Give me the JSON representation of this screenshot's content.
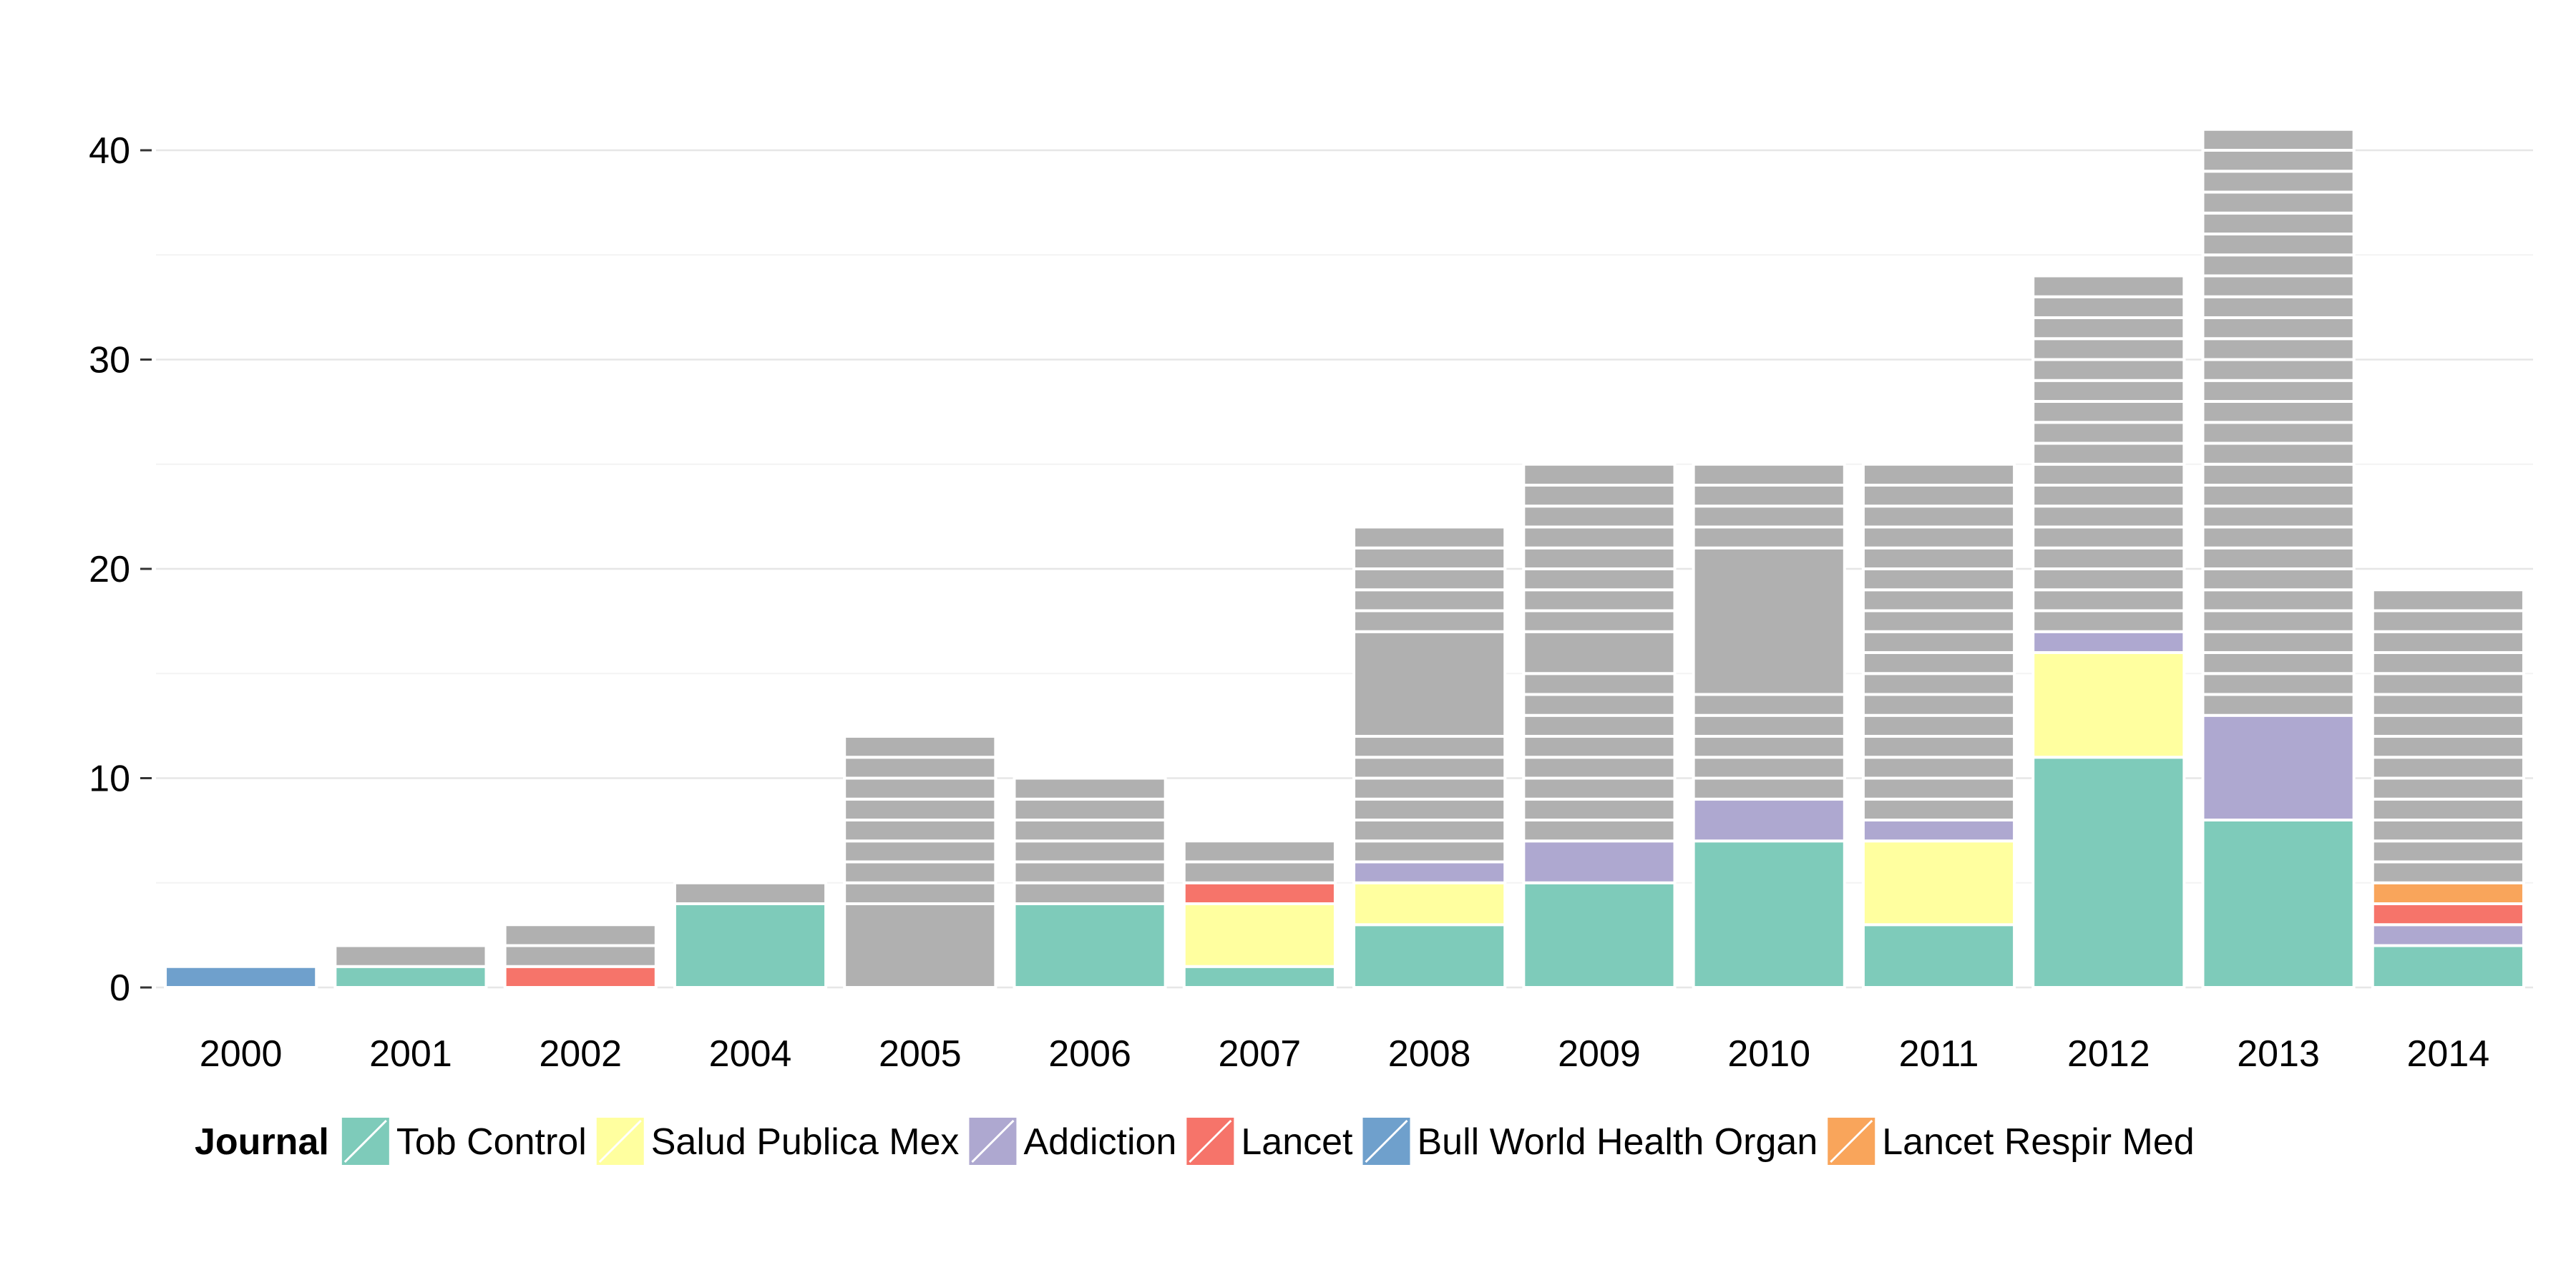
{
  "chart_data": {
    "type": "bar",
    "stacked": true,
    "categories": [
      "2000",
      "2001",
      "2002",
      "2004",
      "2005",
      "2006",
      "2007",
      "2008",
      "2009",
      "2010",
      "2011",
      "2012",
      "2013",
      "2014"
    ],
    "ylim": [
      0,
      43
    ],
    "y_ticks": [
      0,
      10,
      20,
      30,
      40
    ],
    "grid": true,
    "legend": {
      "title": "Journal",
      "position": "bottom",
      "entries": [
        "Tob Control",
        "Salud Publica Mex",
        "Addiction",
        "Lancet",
        "Bull World Health Organ",
        "Lancet Respir Med"
      ]
    },
    "series": [
      {
        "name": "Bull World Health Organ",
        "color": "#6fa0cc",
        "values": [
          1,
          0,
          0,
          0,
          0,
          0,
          0,
          0,
          0,
          0,
          0,
          0,
          0,
          0
        ]
      },
      {
        "name": "Tob Control",
        "color": "#7ecbba",
        "values": [
          0,
          1,
          0,
          4,
          0,
          4,
          1,
          3,
          5,
          7,
          3,
          11,
          8,
          2
        ]
      },
      {
        "name": "Salud Publica Mex",
        "color": "#ffff9f",
        "values": [
          0,
          0,
          0,
          0,
          0,
          0,
          3,
          2,
          0,
          0,
          4,
          5,
          0,
          0
        ]
      },
      {
        "name": "Addiction",
        "color": "#aea8d0",
        "values": [
          0,
          0,
          0,
          0,
          0,
          0,
          0,
          1,
          2,
          2,
          1,
          1,
          5,
          1
        ]
      },
      {
        "name": "Lancet",
        "color": "#f6746a",
        "values": [
          0,
          0,
          1,
          0,
          0,
          0,
          1,
          0,
          0,
          0,
          0,
          0,
          0,
          1
        ]
      },
      {
        "name": "Lancet Respir Med",
        "color": "#f9a55b",
        "values": [
          0,
          0,
          0,
          0,
          0,
          0,
          0,
          0,
          0,
          0,
          0,
          0,
          0,
          1
        ]
      }
    ],
    "other": {
      "color": "#b0b0b0",
      "segments": [
        [],
        [
          1
        ],
        [
          1,
          1
        ],
        [
          1
        ],
        [
          4,
          1,
          1,
          1,
          1,
          1,
          1,
          1,
          1
        ],
        [
          1,
          1,
          1,
          1,
          1,
          1
        ],
        [
          1,
          1
        ],
        [
          1,
          1,
          1,
          1,
          1,
          1,
          5,
          1,
          1,
          1,
          1,
          1
        ],
        [
          1,
          1,
          1,
          1,
          1,
          1,
          1,
          1,
          2,
          1,
          1,
          1,
          1,
          1,
          1,
          1,
          1
        ],
        [
          1,
          1,
          1,
          1,
          1,
          7,
          1,
          1,
          1,
          1
        ],
        [
          1,
          1,
          1,
          1,
          1,
          1,
          1,
          1,
          1,
          1,
          1,
          1,
          1,
          1,
          1,
          1,
          1
        ],
        [
          1,
          1,
          1,
          1,
          1,
          1,
          1,
          1,
          1,
          1,
          1,
          1,
          1,
          1,
          1,
          1,
          1
        ],
        [
          1,
          1,
          1,
          1,
          1,
          1,
          1,
          1,
          1,
          1,
          1,
          1,
          1,
          1,
          1,
          1,
          1,
          1,
          1,
          1,
          1,
          1,
          1,
          1,
          1,
          1,
          1,
          1
        ],
        [
          1,
          1,
          1,
          1,
          1,
          1,
          1,
          1,
          1,
          1,
          1,
          1,
          1,
          1
        ]
      ]
    }
  }
}
